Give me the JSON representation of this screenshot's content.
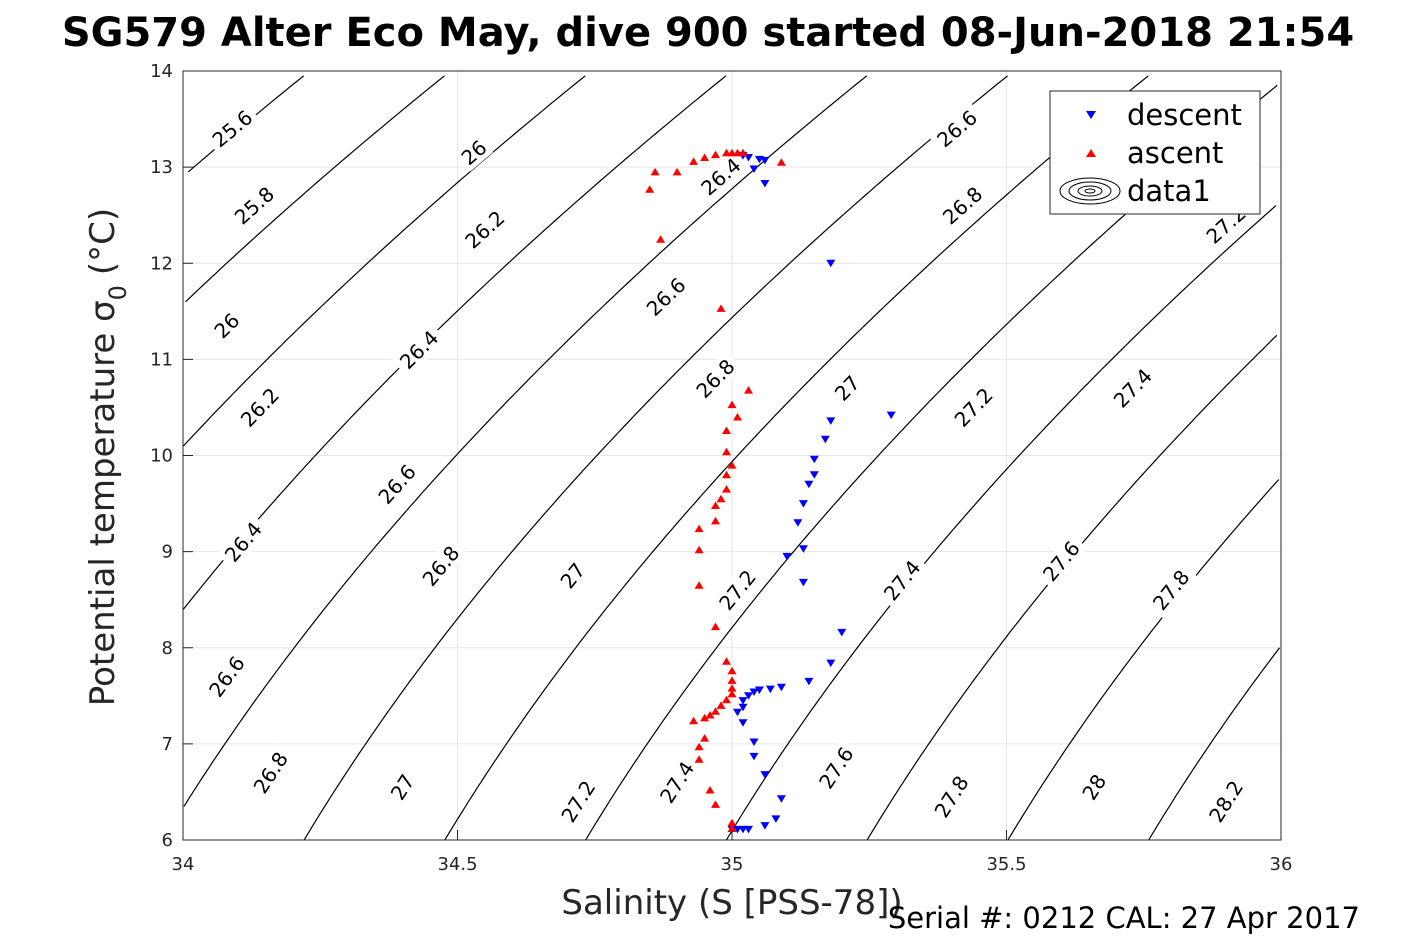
{
  "chart_data": {
    "type": "scatter",
    "title": "SG579 Alter Eco May, dive 900 started 08-Jun-2018 21:54",
    "xlabel": "Salinity (S [PSS-78])",
    "ylabel_main": "Potential temperature σ",
    "ylabel_sub": "0",
    "ylabel_unit": "(°C)",
    "xlim": [
      34,
      36
    ],
    "ylim": [
      6,
      14
    ],
    "xticks": [
      "34",
      "34.5",
      "35",
      "35.5",
      "36"
    ],
    "yticks": [
      "6",
      "7",
      "8",
      "9",
      "10",
      "11",
      "12",
      "13",
      "14"
    ],
    "grid": true,
    "legend_position": "top-right",
    "legend": [
      "descent",
      "ascent",
      "data1"
    ],
    "footer": "Serial #: 0212  CAL: 27 Apr 2017",
    "colors": {
      "descent": "#0000ff",
      "ascent": "#ff0000",
      "contour": "#000000",
      "grid": "#e6e6e6"
    },
    "contour_levels": [
      25.6,
      25.8,
      26,
      26.2,
      26.4,
      26.6,
      26.8,
      27,
      27.2,
      27.4,
      27.6,
      27.8,
      28,
      28.2
    ],
    "contour_labels": [
      {
        "text": "25.6",
        "x": 34.09,
        "y": 13.4
      },
      {
        "text": "25.8",
        "x": 34.13,
        "y": 12.6
      },
      {
        "text": "26",
        "x": 34.08,
        "y": 11.35
      },
      {
        "text": "26.2",
        "x": 34.14,
        "y": 10.5
      },
      {
        "text": "26.4",
        "x": 34.11,
        "y": 9.1
      },
      {
        "text": "26.6",
        "x": 34.08,
        "y": 7.7
      },
      {
        "text": "26.8",
        "x": 34.16,
        "y": 6.7
      },
      {
        "text": "27",
        "x": 34.4,
        "y": 6.55
      },
      {
        "text": "27.2",
        "x": 34.72,
        "y": 6.4
      },
      {
        "text": "27.4",
        "x": 34.9,
        "y": 6.6
      },
      {
        "text": "27.6",
        "x": 35.19,
        "y": 6.75
      },
      {
        "text": "27.8",
        "x": 35.4,
        "y": 6.45
      },
      {
        "text": "28",
        "x": 35.66,
        "y": 6.55
      },
      {
        "text": "28.2",
        "x": 35.9,
        "y": 6.4
      },
      {
        "text": "26",
        "x": 34.53,
        "y": 13.15
      },
      {
        "text": "26.2",
        "x": 34.55,
        "y": 12.35
      },
      {
        "text": "26.4",
        "x": 34.43,
        "y": 11.1
      },
      {
        "text": "26.6",
        "x": 34.39,
        "y": 9.7
      },
      {
        "text": "26.8",
        "x": 34.47,
        "y": 8.85
      },
      {
        "text": "27",
        "x": 34.71,
        "y": 8.75
      },
      {
        "text": "26.4",
        "x": 34.98,
        "y": 12.9
      },
      {
        "text": "26.6",
        "x": 34.88,
        "y": 11.65
      },
      {
        "text": "26.8",
        "x": 34.97,
        "y": 10.8
      },
      {
        "text": "27.2",
        "x": 35.01,
        "y": 8.6
      },
      {
        "text": "27",
        "x": 35.21,
        "y": 10.7
      },
      {
        "text": "27.2",
        "x": 35.44,
        "y": 10.5
      },
      {
        "text": "27.4",
        "x": 35.31,
        "y": 8.7
      },
      {
        "text": "26.6",
        "x": 35.41,
        "y": 13.4
      },
      {
        "text": "26.8",
        "x": 35.42,
        "y": 12.6
      },
      {
        "text": "27.4",
        "x": 35.73,
        "y": 10.7
      },
      {
        "text": "27.6",
        "x": 35.6,
        "y": 8.9
      },
      {
        "text": "27.8",
        "x": 35.8,
        "y": 8.6
      },
      {
        "text": "27.2",
        "x": 35.9,
        "y": 12.4
      }
    ],
    "series": [
      {
        "name": "descent",
        "marker": "triangle-down",
        "points": [
          [
            35.02,
            13.12
          ],
          [
            35.03,
            13.1
          ],
          [
            35.05,
            13.08
          ],
          [
            35.06,
            13.07
          ],
          [
            35.04,
            12.98
          ],
          [
            35.06,
            12.83
          ],
          [
            35.18,
            12.0
          ],
          [
            35.29,
            10.42
          ],
          [
            35.18,
            10.36
          ],
          [
            35.17,
            10.17
          ],
          [
            35.15,
            9.96
          ],
          [
            35.15,
            9.8
          ],
          [
            35.14,
            9.7
          ],
          [
            35.13,
            9.5
          ],
          [
            35.12,
            9.3
          ],
          [
            35.13,
            9.03
          ],
          [
            35.1,
            8.95
          ],
          [
            35.13,
            8.68
          ],
          [
            35.2,
            8.16
          ],
          [
            35.18,
            7.84
          ],
          [
            35.14,
            7.65
          ],
          [
            35.09,
            7.59
          ],
          [
            35.07,
            7.57
          ],
          [
            35.05,
            7.56
          ],
          [
            35.04,
            7.54
          ],
          [
            35.03,
            7.5
          ],
          [
            35.02,
            7.45
          ],
          [
            35.02,
            7.38
          ],
          [
            35.01,
            7.33
          ],
          [
            35.02,
            7.22
          ],
          [
            35.04,
            7.02
          ],
          [
            35.04,
            6.87
          ],
          [
            35.06,
            6.68
          ],
          [
            35.09,
            6.43
          ],
          [
            35.08,
            6.22
          ],
          [
            35.06,
            6.15
          ],
          [
            35.03,
            6.11
          ],
          [
            35.02,
            6.11
          ],
          [
            35.01,
            6.11
          ],
          [
            35.0,
            6.11
          ]
        ]
      },
      {
        "name": "ascent",
        "marker": "triangle-up",
        "points": [
          [
            34.87,
            12.25
          ],
          [
            34.85,
            12.77
          ],
          [
            34.86,
            12.95
          ],
          [
            34.9,
            12.95
          ],
          [
            34.93,
            13.06
          ],
          [
            34.95,
            13.1
          ],
          [
            34.97,
            13.13
          ],
          [
            34.99,
            13.15
          ],
          [
            35.0,
            13.15
          ],
          [
            35.01,
            13.15
          ],
          [
            35.02,
            13.15
          ],
          [
            35.09,
            13.05
          ],
          [
            34.98,
            11.53
          ],
          [
            35.03,
            10.68
          ],
          [
            35.0,
            10.53
          ],
          [
            35.01,
            10.4
          ],
          [
            34.99,
            10.26
          ],
          [
            34.99,
            10.04
          ],
          [
            35.0,
            9.9
          ],
          [
            34.99,
            9.8
          ],
          [
            34.99,
            9.65
          ],
          [
            34.98,
            9.55
          ],
          [
            34.97,
            9.48
          ],
          [
            34.97,
            9.32
          ],
          [
            34.94,
            9.24
          ],
          [
            34.94,
            9.02
          ],
          [
            34.94,
            8.65
          ],
          [
            34.97,
            8.22
          ],
          [
            34.99,
            7.86
          ],
          [
            35.0,
            7.76
          ],
          [
            35.0,
            7.66
          ],
          [
            35.0,
            7.58
          ],
          [
            35.0,
            7.52
          ],
          [
            34.99,
            7.46
          ],
          [
            34.98,
            7.4
          ],
          [
            34.97,
            7.34
          ],
          [
            34.96,
            7.3
          ],
          [
            34.95,
            7.27
          ],
          [
            34.93,
            7.24
          ],
          [
            34.95,
            7.06
          ],
          [
            34.94,
            6.97
          ],
          [
            34.94,
            6.84
          ],
          [
            34.96,
            6.52
          ],
          [
            34.97,
            6.37
          ],
          [
            35.0,
            6.18
          ],
          [
            35.0,
            6.12
          ]
        ]
      }
    ]
  }
}
